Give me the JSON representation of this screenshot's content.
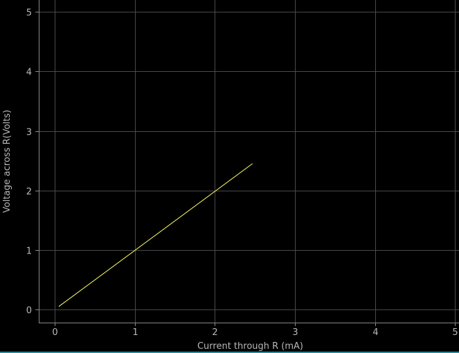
{
  "chart_data": {
    "type": "line",
    "title": "",
    "xlabel": "Current through R (mA)",
    "ylabel": "Voltage across R(Volts)",
    "xlim": [
      -0.2,
      5.05
    ],
    "ylim": [
      -0.22,
      5.2
    ],
    "x_ticks": [
      "0",
      "1",
      "2",
      "3",
      "4",
      "5"
    ],
    "y_ticks": [
      "0",
      "1",
      "2",
      "3",
      "4",
      "5"
    ],
    "grid": true,
    "series": [
      {
        "color": "#ffff66",
        "x": [
          0.05,
          2.47
        ],
        "y": [
          0.05,
          2.45
        ]
      }
    ]
  },
  "colors": {
    "background": "#000000",
    "grid": "#4a4a4a",
    "axis": "#8a8a8a",
    "text": "#b8b8b8",
    "accent_rule": "#2a8a9a"
  }
}
